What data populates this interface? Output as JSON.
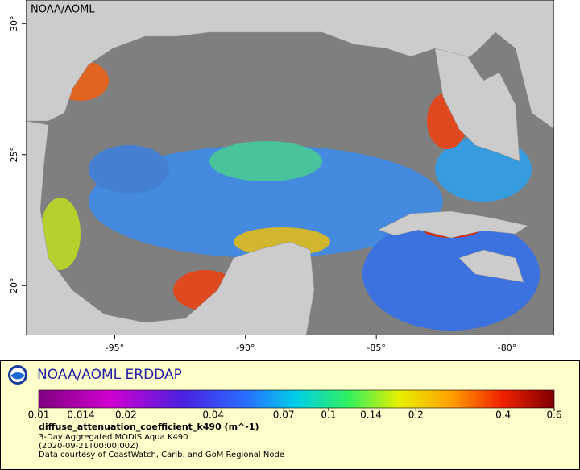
{
  "map": {
    "label": "NOAA/AOML",
    "xlim": [
      -98.4,
      -78.2
    ],
    "ylim": [
      18.1,
      30.9
    ],
    "xticks": [
      {
        "value": -95,
        "label": "-95°"
      },
      {
        "value": -90,
        "label": "-90°"
      },
      {
        "value": -85,
        "label": "-85°"
      },
      {
        "value": -80,
        "label": "-80°"
      }
    ],
    "yticks": [
      {
        "value": 20,
        "label": "20°"
      },
      {
        "value": 25,
        "label": "25°"
      },
      {
        "value": 30,
        "label": "30°"
      }
    ]
  },
  "legend": {
    "title": "NOAA/AOML ERDDAP",
    "colorbar": {
      "log_scale": true,
      "lim": [
        0.01,
        0.6
      ],
      "ticks": [
        0.01,
        0.014,
        0.02,
        0.04,
        0.07,
        0.1,
        0.14,
        0.2,
        0.4,
        0.6
      ]
    },
    "variable": "diffuse_attenuation_coefficient_k490 (m^-1)",
    "lines": [
      "3-Day Aggregated MODIS Aqua K490",
      "(2020-09-21T00:00:00Z)",
      "Data courtesy of CoastWatch, Carib. and GoM Regional Node"
    ]
  }
}
